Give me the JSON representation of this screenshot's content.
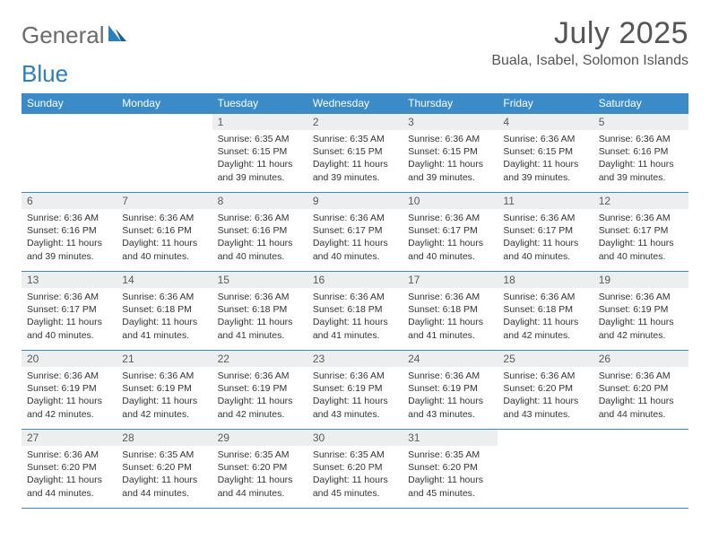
{
  "brand": {
    "word1": "General",
    "word2": "Blue"
  },
  "header": {
    "month_title": "July 2025",
    "location": "Buala, Isabel, Solomon Islands"
  },
  "colors": {
    "header_bg": "#3b8bc9",
    "header_text": "#ffffff",
    "daynum_bg": "#eceeef",
    "border": "#3b8bc9",
    "logo_gray": "#6b6b6b",
    "logo_blue": "#2a7fbf"
  },
  "day_headers": [
    "Sunday",
    "Monday",
    "Tuesday",
    "Wednesday",
    "Thursday",
    "Friday",
    "Saturday"
  ],
  "weeks": [
    [
      null,
      null,
      {
        "n": "1",
        "sr": "Sunrise: 6:35 AM",
        "ss": "Sunset: 6:15 PM",
        "d1": "Daylight: 11 hours",
        "d2": "and 39 minutes."
      },
      {
        "n": "2",
        "sr": "Sunrise: 6:35 AM",
        "ss": "Sunset: 6:15 PM",
        "d1": "Daylight: 11 hours",
        "d2": "and 39 minutes."
      },
      {
        "n": "3",
        "sr": "Sunrise: 6:36 AM",
        "ss": "Sunset: 6:15 PM",
        "d1": "Daylight: 11 hours",
        "d2": "and 39 minutes."
      },
      {
        "n": "4",
        "sr": "Sunrise: 6:36 AM",
        "ss": "Sunset: 6:15 PM",
        "d1": "Daylight: 11 hours",
        "d2": "and 39 minutes."
      },
      {
        "n": "5",
        "sr": "Sunrise: 6:36 AM",
        "ss": "Sunset: 6:16 PM",
        "d1": "Daylight: 11 hours",
        "d2": "and 39 minutes."
      }
    ],
    [
      {
        "n": "6",
        "sr": "Sunrise: 6:36 AM",
        "ss": "Sunset: 6:16 PM",
        "d1": "Daylight: 11 hours",
        "d2": "and 39 minutes."
      },
      {
        "n": "7",
        "sr": "Sunrise: 6:36 AM",
        "ss": "Sunset: 6:16 PM",
        "d1": "Daylight: 11 hours",
        "d2": "and 40 minutes."
      },
      {
        "n": "8",
        "sr": "Sunrise: 6:36 AM",
        "ss": "Sunset: 6:16 PM",
        "d1": "Daylight: 11 hours",
        "d2": "and 40 minutes."
      },
      {
        "n": "9",
        "sr": "Sunrise: 6:36 AM",
        "ss": "Sunset: 6:17 PM",
        "d1": "Daylight: 11 hours",
        "d2": "and 40 minutes."
      },
      {
        "n": "10",
        "sr": "Sunrise: 6:36 AM",
        "ss": "Sunset: 6:17 PM",
        "d1": "Daylight: 11 hours",
        "d2": "and 40 minutes."
      },
      {
        "n": "11",
        "sr": "Sunrise: 6:36 AM",
        "ss": "Sunset: 6:17 PM",
        "d1": "Daylight: 11 hours",
        "d2": "and 40 minutes."
      },
      {
        "n": "12",
        "sr": "Sunrise: 6:36 AM",
        "ss": "Sunset: 6:17 PM",
        "d1": "Daylight: 11 hours",
        "d2": "and 40 minutes."
      }
    ],
    [
      {
        "n": "13",
        "sr": "Sunrise: 6:36 AM",
        "ss": "Sunset: 6:17 PM",
        "d1": "Daylight: 11 hours",
        "d2": "and 40 minutes."
      },
      {
        "n": "14",
        "sr": "Sunrise: 6:36 AM",
        "ss": "Sunset: 6:18 PM",
        "d1": "Daylight: 11 hours",
        "d2": "and 41 minutes."
      },
      {
        "n": "15",
        "sr": "Sunrise: 6:36 AM",
        "ss": "Sunset: 6:18 PM",
        "d1": "Daylight: 11 hours",
        "d2": "and 41 minutes."
      },
      {
        "n": "16",
        "sr": "Sunrise: 6:36 AM",
        "ss": "Sunset: 6:18 PM",
        "d1": "Daylight: 11 hours",
        "d2": "and 41 minutes."
      },
      {
        "n": "17",
        "sr": "Sunrise: 6:36 AM",
        "ss": "Sunset: 6:18 PM",
        "d1": "Daylight: 11 hours",
        "d2": "and 41 minutes."
      },
      {
        "n": "18",
        "sr": "Sunrise: 6:36 AM",
        "ss": "Sunset: 6:18 PM",
        "d1": "Daylight: 11 hours",
        "d2": "and 42 minutes."
      },
      {
        "n": "19",
        "sr": "Sunrise: 6:36 AM",
        "ss": "Sunset: 6:19 PM",
        "d1": "Daylight: 11 hours",
        "d2": "and 42 minutes."
      }
    ],
    [
      {
        "n": "20",
        "sr": "Sunrise: 6:36 AM",
        "ss": "Sunset: 6:19 PM",
        "d1": "Daylight: 11 hours",
        "d2": "and 42 minutes."
      },
      {
        "n": "21",
        "sr": "Sunrise: 6:36 AM",
        "ss": "Sunset: 6:19 PM",
        "d1": "Daylight: 11 hours",
        "d2": "and 42 minutes."
      },
      {
        "n": "22",
        "sr": "Sunrise: 6:36 AM",
        "ss": "Sunset: 6:19 PM",
        "d1": "Daylight: 11 hours",
        "d2": "and 42 minutes."
      },
      {
        "n": "23",
        "sr": "Sunrise: 6:36 AM",
        "ss": "Sunset: 6:19 PM",
        "d1": "Daylight: 11 hours",
        "d2": "and 43 minutes."
      },
      {
        "n": "24",
        "sr": "Sunrise: 6:36 AM",
        "ss": "Sunset: 6:19 PM",
        "d1": "Daylight: 11 hours",
        "d2": "and 43 minutes."
      },
      {
        "n": "25",
        "sr": "Sunrise: 6:36 AM",
        "ss": "Sunset: 6:20 PM",
        "d1": "Daylight: 11 hours",
        "d2": "and 43 minutes."
      },
      {
        "n": "26",
        "sr": "Sunrise: 6:36 AM",
        "ss": "Sunset: 6:20 PM",
        "d1": "Daylight: 11 hours",
        "d2": "and 44 minutes."
      }
    ],
    [
      {
        "n": "27",
        "sr": "Sunrise: 6:36 AM",
        "ss": "Sunset: 6:20 PM",
        "d1": "Daylight: 11 hours",
        "d2": "and 44 minutes."
      },
      {
        "n": "28",
        "sr": "Sunrise: 6:35 AM",
        "ss": "Sunset: 6:20 PM",
        "d1": "Daylight: 11 hours",
        "d2": "and 44 minutes."
      },
      {
        "n": "29",
        "sr": "Sunrise: 6:35 AM",
        "ss": "Sunset: 6:20 PM",
        "d1": "Daylight: 11 hours",
        "d2": "and 44 minutes."
      },
      {
        "n": "30",
        "sr": "Sunrise: 6:35 AM",
        "ss": "Sunset: 6:20 PM",
        "d1": "Daylight: 11 hours",
        "d2": "and 45 minutes."
      },
      {
        "n": "31",
        "sr": "Sunrise: 6:35 AM",
        "ss": "Sunset: 6:20 PM",
        "d1": "Daylight: 11 hours",
        "d2": "and 45 minutes."
      },
      null,
      null
    ]
  ]
}
